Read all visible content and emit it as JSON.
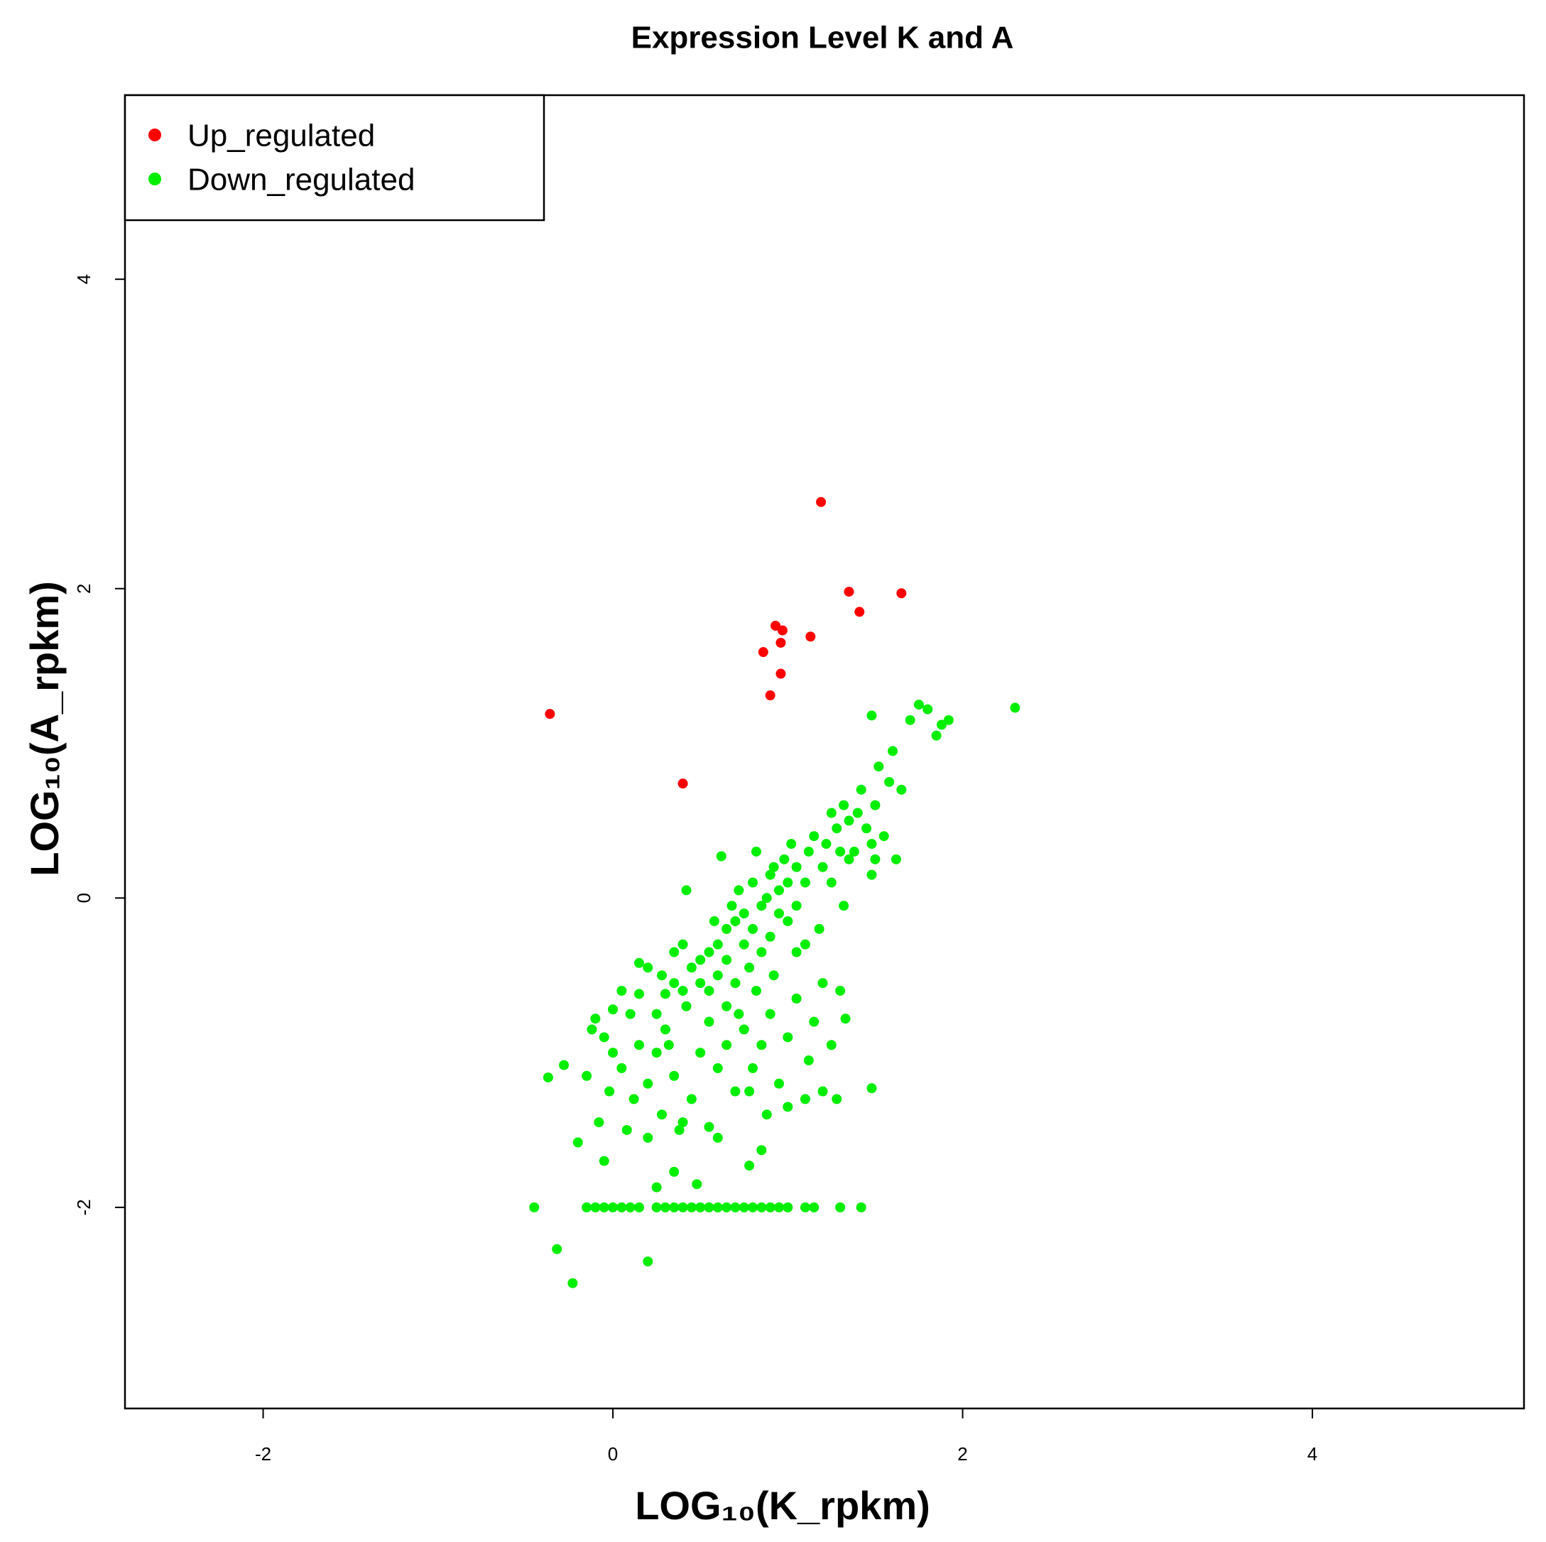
{
  "chart_data": {
    "type": "scatter",
    "title": "Expression Level K and A",
    "x_label": "LOG₁₀(K_rpkm)",
    "y_label": "LOG₁₀(A_rpkm)",
    "xlim": [
      -2.79,
      5.21
    ],
    "ylim": [
      -3.3,
      5.19
    ],
    "xticks": [
      -2,
      0,
      2,
      4
    ],
    "yticks": [
      -2,
      0,
      2,
      4
    ],
    "grid": false,
    "legend": "top-left",
    "series": [
      {
        "name": "Up_regulated",
        "color": "#ff0000",
        "x": [
          1.19,
          1.35,
          1.65,
          1.41,
          0.93,
          0.97,
          1.13,
          0.96,
          0.86,
          0.96,
          0.9,
          -0.36,
          0.4
        ],
        "values": [
          2.56,
          1.98,
          1.97,
          1.85,
          1.76,
          1.73,
          1.69,
          1.65,
          1.59,
          1.45,
          1.31,
          1.19,
          0.74
        ]
      },
      {
        "name": "Down_regulated",
        "color": "#00ee00",
        "x": [
          -0.45,
          -0.15,
          -0.1,
          -0.05,
          0,
          0.05,
          0.1,
          0.15,
          0.25,
          0.3,
          0.35,
          0.4,
          0.45,
          0.5,
          0.55,
          0.6,
          0.65,
          0.7,
          0.75,
          0.8,
          0.85,
          0.9,
          0.95,
          1.0,
          1.1,
          1.15,
          1.3,
          1.42,
          -0.32,
          -0.23,
          0.2,
          -0.37,
          -0.28,
          -0.15,
          -0.2,
          -0.05,
          0.25,
          0.35,
          0.6,
          0.85,
          0.78,
          -0.12,
          -0.1,
          0,
          0.05,
          0.15,
          0.2,
          0.28,
          0.3,
          0.35,
          0.4,
          0.42,
          0.45,
          0.5,
          0.5,
          0.55,
          0.55,
          0.6,
          0.6,
          0.62,
          0.65,
          0.65,
          0.7,
          0.7,
          0.72,
          0.75,
          0.75,
          0.78,
          0.8,
          0.8,
          0.82,
          0.85,
          0.85,
          0.88,
          0.9,
          0.9,
          0.92,
          0.95,
          0.95,
          0.98,
          1.0,
          1.0,
          1.02,
          1.05,
          1.05,
          1.1,
          1.1,
          1.12,
          1.15,
          1.18,
          1.2,
          1.22,
          1.25,
          1.25,
          1.28,
          1.3,
          1.32,
          1.35,
          1.35,
          1.38,
          1.4,
          1.42,
          1.45,
          1.48,
          1.5,
          1.5,
          1.52,
          1.55,
          1.58,
          1.6,
          1.62,
          1.65,
          1.7,
          1.75,
          1.8,
          1.85,
          1.88,
          1.92,
          2.3,
          1.48,
          1.48,
          1.32,
          1.2,
          1.3,
          1.33,
          1.28,
          1.2,
          1.48,
          1.15,
          1.05,
          1.0,
          0.95,
          1.0,
          1.1,
          0.9,
          0.85,
          0.8,
          0.75,
          0.7,
          0.65,
          0.6,
          0.55,
          0.5,
          0.45,
          0.42,
          0.38,
          0.35,
          0.3,
          0.28,
          0.25,
          0.2,
          0.2,
          0.15,
          0.12,
          0.1,
          0.05,
          0.0,
          -0.02,
          -0.08,
          -0.05,
          0.08,
          0.15,
          0.32,
          0.48,
          0.55,
          0.4,
          0.65,
          0.72,
          0.82,
          0.92,
          1.05,
          0.58,
          0.68,
          0.4,
          0.25,
          0.35,
          1.12,
          1.25,
          0.88,
          0.78
        ],
        "values": [
          -2,
          -2,
          -2,
          -2,
          -2,
          -2,
          -2,
          -2,
          -2,
          -2,
          -2,
          -2,
          -2,
          -2,
          -2,
          -2,
          -2,
          -2,
          -2,
          -2,
          -2,
          -2,
          -2,
          -2,
          -2,
          -2,
          -2,
          -2,
          -2.27,
          -2.49,
          -2.35,
          -1.16,
          -1.08,
          -1.15,
          -1.58,
          -1.7,
          -1.87,
          -1.77,
          -1.55,
          -1.63,
          -1.73,
          -0.85,
          -0.78,
          -0.72,
          -0.6,
          -0.42,
          -0.45,
          -0.5,
          -0.62,
          -0.55,
          -0.3,
          0.05,
          -0.45,
          -0.4,
          -0.55,
          -0.35,
          -0.6,
          -0.5,
          -0.3,
          0.27,
          -0.2,
          -0.4,
          -0.15,
          -0.55,
          0.05,
          -0.1,
          -0.3,
          -0.45,
          -0.2,
          0.1,
          0.3,
          -0.05,
          -0.35,
          0.0,
          -0.25,
          0.15,
          0.2,
          -0.1,
          0.05,
          0.25,
          0.1,
          -0.15,
          0.35,
          0.2,
          -0.05,
          0.1,
          -0.3,
          0.3,
          0.4,
          -0.2,
          0.2,
          0.35,
          0.55,
          0.1,
          0.45,
          0.3,
          0.6,
          0.5,
          0.25,
          0.3,
          0.55,
          0.7,
          0.45,
          0.35,
          0.25,
          0.6,
          0.85,
          0.4,
          0.75,
          0.95,
          0.25,
          0.7,
          1.15,
          1.25,
          1.22,
          1.05,
          1.12,
          1.15,
          1.23,
          1.18,
          0.15,
          -0.05,
          -0.55,
          -0.6,
          -0.78,
          -1.3,
          -1.25,
          -1.23,
          -0.8,
          -0.65,
          -0.9,
          -1.2,
          -1.35,
          -1.3,
          -0.75,
          -0.95,
          -1.1,
          -0.85,
          -1.25,
          -0.95,
          -1.1,
          -0.8,
          -1.0,
          -1.3,
          -0.7,
          -1.5,
          -1.15,
          -0.85,
          -1.4,
          -1.0,
          -1.2,
          -1.55,
          -0.95,
          -1.3,
          -0.75,
          -1.1,
          -1.0,
          -1.25,
          -1.45,
          -0.9,
          -1.5,
          -0.62,
          -0.95,
          -1.85,
          -1.48,
          -1.45,
          -0.7,
          -0.75,
          -0.6,
          -0.5,
          -0.35,
          -0.15,
          -0.05,
          -0.6,
          -0.75,
          -0.35,
          -1.05,
          -0.95,
          -1.4,
          -1.25
        ]
      }
    ]
  }
}
